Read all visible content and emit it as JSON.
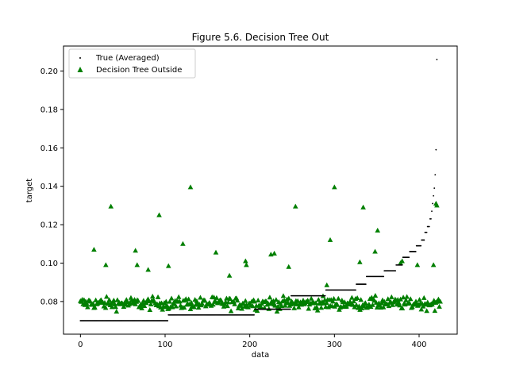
{
  "chart_data": {
    "type": "scatter",
    "title": "Figure 5.6. Decision Tree Out",
    "xlabel": "data",
    "ylabel": "target",
    "xlim": [
      -20,
      445
    ],
    "ylim": [
      0.063,
      0.213
    ],
    "xticks": [
      0,
      100,
      200,
      300,
      400
    ],
    "yticks": [
      0.08,
      0.1,
      0.12,
      0.14,
      0.16,
      0.18,
      0.2
    ],
    "ytick_labels": [
      "0.08",
      "0.10",
      "0.12",
      "0.14",
      "0.16",
      "0.18",
      "0.20"
    ],
    "grid": false,
    "legend_position": "top-left",
    "series": [
      {
        "name": "True (Averaged)",
        "marker": "dot",
        "color": "#000000",
        "segments": [
          {
            "x_start": 0,
            "x_end": 103,
            "y": 0.07
          },
          {
            "x_start": 104,
            "x_end": 205,
            "y": 0.073
          },
          {
            "x_start": 206,
            "x_end": 248,
            "y": 0.076
          },
          {
            "x_start": 249,
            "x_end": 289,
            "y": 0.083
          },
          {
            "x_start": 290,
            "x_end": 325,
            "y": 0.086
          },
          {
            "x_start": 326,
            "x_end": 337,
            "y": 0.089
          },
          {
            "x_start": 338,
            "x_end": 358,
            "y": 0.093
          },
          {
            "x_start": 359,
            "x_end": 372,
            "y": 0.096
          },
          {
            "x_start": 373,
            "x_end": 380,
            "y": 0.099
          },
          {
            "x_start": 381,
            "x_end": 388,
            "y": 0.103
          },
          {
            "x_start": 389,
            "x_end": 396,
            "y": 0.106
          },
          {
            "x_start": 397,
            "x_end": 402,
            "y": 0.109
          },
          {
            "x_start": 403,
            "x_end": 406,
            "y": 0.112
          },
          {
            "x_start": 407,
            "x_end": 409,
            "y": 0.116
          },
          {
            "x_start": 410,
            "x_end": 412,
            "y": 0.119
          },
          {
            "x_start": 413,
            "x_end": 414,
            "y": 0.123
          },
          {
            "x_start": 415,
            "x_end": 415,
            "y": 0.127
          },
          {
            "x_start": 416,
            "x_end": 416,
            "y": 0.131
          },
          {
            "x_start": 417,
            "x_end": 417,
            "y": 0.135
          },
          {
            "x_start": 418,
            "x_end": 418,
            "y": 0.139
          },
          {
            "x_start": 419,
            "x_end": 419,
            "y": 0.146
          },
          {
            "x_start": 420,
            "x_end": 420,
            "y": 0.159
          },
          {
            "x_start": 421,
            "x_end": 421,
            "y": 0.206
          }
        ]
      },
      {
        "name": "Decision Tree Outside",
        "marker": "triangle",
        "color": "#007f00",
        "outliers": [
          [
            16,
            0.107
          ],
          [
            30,
            0.099
          ],
          [
            36,
            0.1295
          ],
          [
            65,
            0.1065
          ],
          [
            67,
            0.099
          ],
          [
            80,
            0.0965
          ],
          [
            93,
            0.125
          ],
          [
            104,
            0.0985
          ],
          [
            121,
            0.11
          ],
          [
            130,
            0.1395
          ],
          [
            160,
            0.1055
          ],
          [
            176,
            0.0935
          ],
          [
            195,
            0.101
          ],
          [
            196,
            0.099
          ],
          [
            225,
            0.1045
          ],
          [
            229,
            0.105
          ],
          [
            246,
            0.098
          ],
          [
            254,
            0.1295
          ],
          [
            291,
            0.0885
          ],
          [
            295,
            0.112
          ],
          [
            300,
            0.1395
          ],
          [
            330,
            0.1005
          ],
          [
            334,
            0.129
          ],
          [
            348,
            0.106
          ],
          [
            351,
            0.117
          ],
          [
            378,
            0.1
          ],
          [
            380,
            0.101
          ],
          [
            398,
            0.099
          ],
          [
            417,
            0.099
          ],
          [
            420,
            0.131
          ],
          [
            421,
            0.13
          ]
        ],
        "bulk": {
          "count": 400,
          "x_range": [
            0,
            425
          ],
          "y_center": 0.079,
          "y_spread": 0.0045
        }
      }
    ]
  }
}
